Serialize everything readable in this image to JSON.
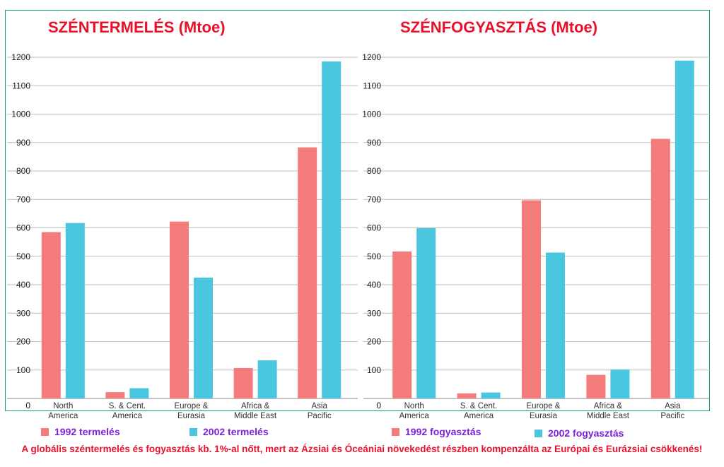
{
  "colors": {
    "series1992": "#f47c7a",
    "series2002": "#4bc6e0",
    "grid": "#bdbdbd",
    "title": "#e8112a",
    "legend": "#7b1fd9"
  },
  "chart_data": [
    {
      "type": "bar",
      "title": "SZÉNTERMELÉS (Mtoe)",
      "categories": [
        [
          "North",
          "America"
        ],
        [
          "S. & Cent.",
          "America"
        ],
        [
          "Europe &",
          "Eurasia"
        ],
        [
          "Africa &",
          "Middle East"
        ],
        [
          "Asia",
          "Pacific"
        ]
      ],
      "series": [
        {
          "name": "1992 termelés",
          "values": [
            585,
            22,
            622,
            107,
            883
          ]
        },
        {
          "name": "2002 termelés",
          "values": [
            617,
            36,
            425,
            134,
            1185
          ]
        }
      ],
      "ylim": [
        0,
        1200
      ],
      "yticks": [
        0,
        100,
        200,
        300,
        400,
        500,
        600,
        700,
        800,
        900,
        1000,
        1100,
        1200
      ],
      "grid": true
    },
    {
      "type": "bar",
      "title": "SZÉNFOGYASZTÁS (Mtoe)",
      "categories": [
        [
          "North",
          "America"
        ],
        [
          "S. & Cent.",
          "America"
        ],
        [
          "Europe &",
          "Eurasia"
        ],
        [
          "Africa &",
          "Middle East"
        ],
        [
          "Asia",
          "Pacific"
        ]
      ],
      "series": [
        {
          "name": "1992 fogyasztás",
          "values": [
            517,
            18,
            697,
            83,
            913
          ]
        },
        {
          "name": "2002 fogyasztás",
          "values": [
            599,
            21,
            513,
            102,
            1188
          ]
        }
      ],
      "ylim": [
        0,
        1200
      ],
      "yticks": [
        0,
        100,
        200,
        300,
        400,
        500,
        600,
        700,
        800,
        900,
        1000,
        1100,
        1200
      ],
      "grid": true
    }
  ],
  "footer": "A globális széntermelés és fogyasztás kb. 1%-al nőtt, mert az Ázsiai és Óceániai növekedést részben kompenzálta az Európai és Eurázsiai csökkenés!"
}
